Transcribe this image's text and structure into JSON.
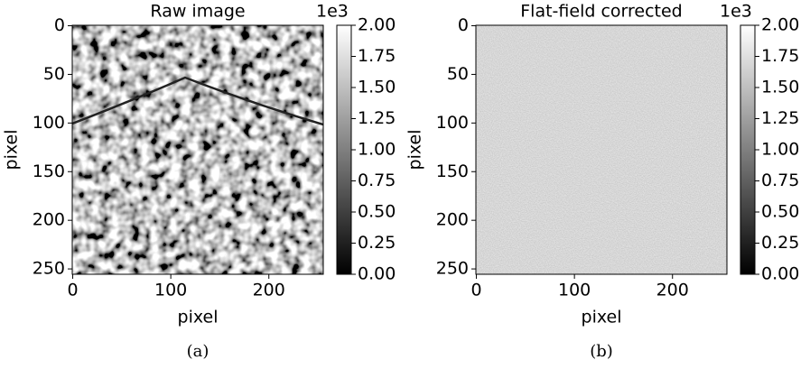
{
  "chart_data": [
    {
      "type": "image",
      "title": "Raw image",
      "xlabel": "pixel",
      "ylabel": "pixel",
      "xlim": [
        -0.5,
        255.5
      ],
      "xticks": [
        0,
        100,
        200
      ],
      "ylim": [
        255.5,
        -0.5
      ],
      "yticks": [
        0,
        50,
        100,
        150,
        200,
        250
      ],
      "colorbar": {
        "lim": [
          0,
          2
        ],
        "offset_label": "1e3",
        "colors": [
          "#000000",
          "#ffffff"
        ],
        "ticks": [
          {
            "value": 0,
            "label": "0.00"
          },
          {
            "value": 0.25,
            "label": "0.25"
          },
          {
            "value": 0.5,
            "label": "0.50"
          },
          {
            "value": 0.75,
            "label": "0.75"
          },
          {
            "value": 1,
            "label": "1.00"
          },
          {
            "value": 1.25,
            "label": "1.25"
          },
          {
            "value": 1.5,
            "label": "1.50"
          },
          {
            "value": 1.75,
            "label": "1.75"
          },
          {
            "value": 2,
            "label": "2.00"
          }
        ]
      },
      "caption": "(a)"
    },
    {
      "type": "image",
      "title": "Flat-field corrected",
      "xlabel": "pixel",
      "ylabel": "pixel",
      "xlim": [
        -0.5,
        255.5
      ],
      "xticks": [
        0,
        100,
        200
      ],
      "ylim": [
        255.5,
        -0.5
      ],
      "yticks": [
        0,
        50,
        100,
        150,
        200,
        250
      ],
      "colorbar": {
        "lim": [
          0,
          2
        ],
        "offset_label": "1e3",
        "colors": [
          "#000000",
          "#ffffff"
        ],
        "ticks": [
          {
            "value": 0,
            "label": "0.00"
          },
          {
            "value": 0.25,
            "label": "0.25"
          },
          {
            "value": 0.5,
            "label": "0.50"
          },
          {
            "value": 0.75,
            "label": "0.75"
          },
          {
            "value": 1,
            "label": "1.00"
          },
          {
            "value": 1.25,
            "label": "1.25"
          },
          {
            "value": 1.5,
            "label": "1.50"
          },
          {
            "value": 1.75,
            "label": "1.75"
          },
          {
            "value": 2,
            "label": "2.00"
          }
        ]
      },
      "caption": "(b)"
    }
  ]
}
